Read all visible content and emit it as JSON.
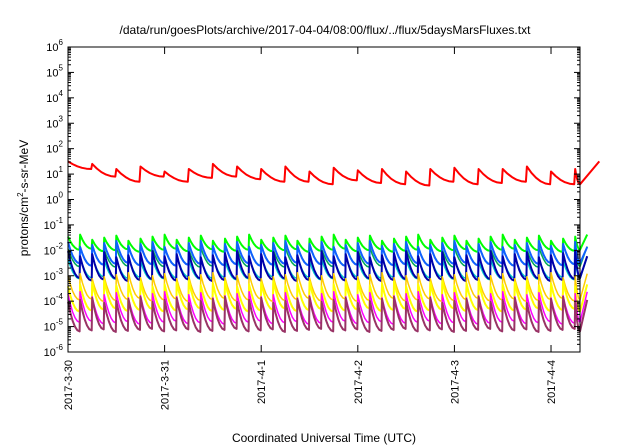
{
  "chart_data": {
    "type": "line",
    "title": "/data/run/goesPlots/archive/2017-04-04/08:00/flux/../flux/5daysMarsFluxes.txt",
    "xlabel": "Coordinated Universal Time (UTC)",
    "ylabel": {
      "prefix": "protons/cm",
      "sup": "2",
      "suffix": "-s-sr-MeV"
    },
    "yscale": "log",
    "ylim_exponents": [
      -6,
      6
    ],
    "ytick_base": "10",
    "yticks": [
      "-6",
      "-5",
      "-4",
      "-3",
      "-2",
      "-1",
      "0",
      "1",
      "2",
      "3",
      "4",
      "5",
      "6"
    ],
    "xlim_days": [
      0,
      5.3
    ],
    "x_categories": [
      "2017-3-30",
      "2017-3-31",
      "2017-4-1",
      "2017-4-2",
      "2017-4-3",
      "2017-4-4"
    ],
    "x_tick_days": [
      0,
      1,
      2,
      3,
      4,
      5
    ],
    "grid": false,
    "legend": "none",
    "series": [
      {
        "color": "#ff0000",
        "period_days": 0.25,
        "peak_decades": [
          1.5,
          1.4,
          1.2,
          1.3,
          1.1,
          1.2,
          1.4,
          1.3,
          1.2,
          1.3,
          1.1,
          1.25,
          1.15,
          1.2,
          1.1,
          1.2,
          1.25,
          1.2,
          1.2,
          1.3,
          1.1,
          1.2
        ],
        "trough_decades": [
          1.2,
          0.9,
          0.7,
          0.9,
          0.7,
          0.85,
          0.9,
          0.8,
          0.7,
          0.7,
          0.6,
          0.75,
          0.65,
          0.6,
          0.55,
          0.7,
          0.6,
          0.65,
          0.7,
          0.6,
          0.6,
          0.6
        ],
        "width": 2
      },
      {
        "color": "#00ff00",
        "period_days": 0.125,
        "peak": -1.5,
        "trough": -2.0,
        "width": 2
      },
      {
        "color": "#00aa55",
        "period_days": 0.125,
        "peak": -1.85,
        "trough": -2.6,
        "width": 1.5
      },
      {
        "color": "#1060ff",
        "period_days": 0.125,
        "peak": -1.75,
        "trough": -2.55,
        "width": 2
      },
      {
        "color": "#00cccc",
        "period_days": 0.125,
        "peak": -2.3,
        "trough": -3.1,
        "width": 1.5
      },
      {
        "color": "#0000aa",
        "period_days": 0.125,
        "peak": -2.15,
        "trough": -3.15,
        "width": 2
      },
      {
        "color": "#ffcc00",
        "period_days": 0.125,
        "peak": -3.0,
        "trough": -3.95,
        "width": 1.5
      },
      {
        "color": "#ffff00",
        "period_days": 0.125,
        "peak": -3.3,
        "trough": -4.35,
        "width": 2
      },
      {
        "color": "#ff00ff",
        "period_days": 0.125,
        "peak": -3.75,
        "trough": -4.85,
        "width": 1.5
      },
      {
        "color": "#993366",
        "period_days": 0.125,
        "peak": -3.95,
        "trough": -5.15,
        "width": 2
      }
    ]
  }
}
